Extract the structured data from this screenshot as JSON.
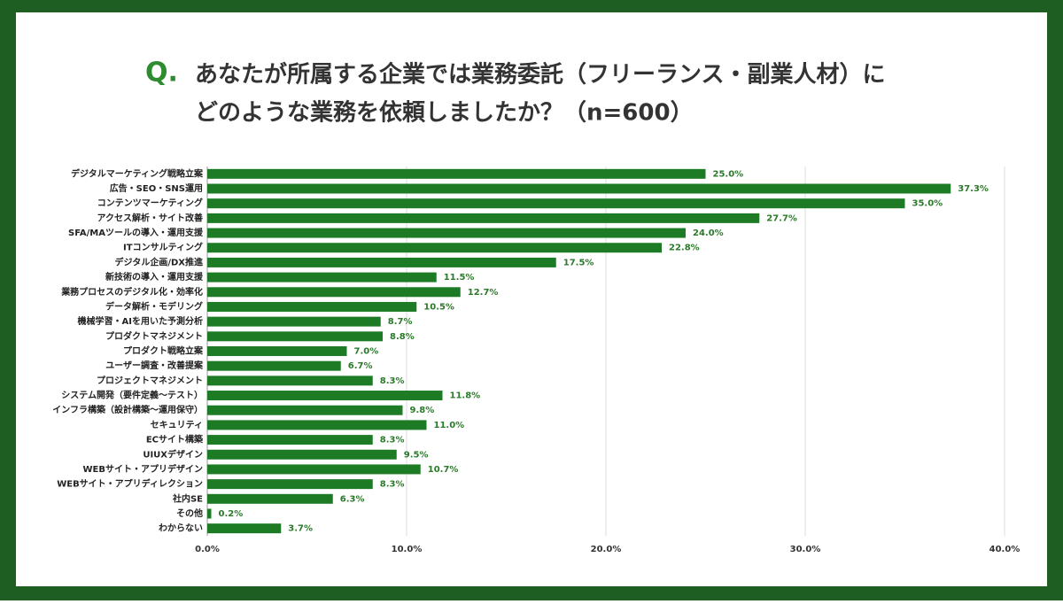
{
  "chart_data": {
    "type": "barh",
    "title_marker": "Q.",
    "title": [
      "あなたが所属する企業では業務委託（フリーランス・副業人材）に",
      "どのような業務を依頼しましたか？（n=600）"
    ],
    "categories": [
      "デジタルマーケティング戦略立案",
      "広告・SEO・SNS運用",
      "コンテンツマーケティング",
      "アクセス解析・サイト改善",
      "SFA/MAツールの導入・運用支援",
      "ITコンサルティング",
      "デジタル企画/DX推進",
      "新技術の導入・運用支援",
      "業務プロセスのデジタル化・効率化",
      "データ解析・モデリング",
      "機械学習・AIを用いた予測分析",
      "プロダクトマネジメント",
      "プロダクト戦略立案",
      "ユーザー調査・改善提案",
      "プロジェクトマネジメント",
      "システム開発（要件定義～テスト）",
      "インフラ構築（設計構築～運用保守）",
      "セキュリティ",
      "ECサイト構築",
      "UIUXデザイン",
      "WEBサイト・アプリデザイン",
      "WEBサイト・アプリディレクション",
      "社内SE",
      "その他",
      "わからない"
    ],
    "values": [
      25.0,
      37.3,
      35.0,
      27.7,
      24.0,
      22.8,
      17.5,
      11.5,
      12.7,
      10.5,
      8.7,
      8.8,
      7.0,
      6.7,
      8.3,
      11.8,
      9.8,
      11.0,
      8.3,
      9.5,
      10.7,
      8.3,
      6.3,
      0.2,
      3.7
    ],
    "value_labels": [
      "25.0%",
      "37.3%",
      "35.0%",
      "27.7%",
      "24.0%",
      "22.8%",
      "17.5%",
      "11.5%",
      "12.7%",
      "10.5%",
      "8.7%",
      "8.8%",
      "7.0%",
      "6.7%",
      "8.3%",
      "11.8%",
      "9.8%",
      "11.0%",
      "8.3%",
      "9.5%",
      "10.7%",
      "8.3%",
      "6.3%",
      "0.2%",
      "3.7%"
    ],
    "color": "#1e7b25",
    "xlim": [
      0,
      40
    ],
    "xticks": [
      {
        "value": 0,
        "label": "0.0%"
      },
      {
        "value": 10,
        "label": "10.0%"
      },
      {
        "value": 20,
        "label": "20.0%"
      },
      {
        "value": 30,
        "label": "30.0%"
      },
      {
        "value": 40,
        "label": "40.0%"
      }
    ],
    "grid": true
  }
}
